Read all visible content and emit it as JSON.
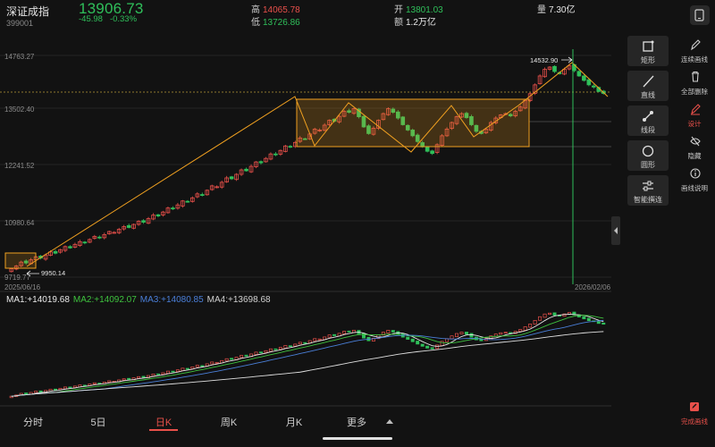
{
  "header": {
    "name": "深证成指",
    "code": "399001",
    "price": "13906.73",
    "change": "-45.98",
    "change_pct": "-0.33%",
    "high_label": "高",
    "high": "14065.78",
    "low_label": "低",
    "low": "13726.86",
    "open_label": "开",
    "open": "13801.03",
    "amount_label": "额",
    "amount": "1.2万亿",
    "volume_label": "量",
    "volume": "7.30亿"
  },
  "axis": {
    "y_ticks": [
      "14763.27",
      "13502.40",
      "12241.52",
      "10980.64",
      "9719.77"
    ],
    "start_date": "2025/06/16",
    "end_date": "2026/02/06",
    "low_mark": "9950.14",
    "high_mark": "14532.90"
  },
  "ma": {
    "ma1": "MA1:+14019.68",
    "ma2": "MA2:+14092.07",
    "ma3": "MA3:+14080.85",
    "ma4": "MA4:+13698.68"
  },
  "tools": [
    {
      "name": "rect",
      "label": "矩形"
    },
    {
      "name": "line",
      "label": "直线"
    },
    {
      "name": "segment",
      "label": "线段"
    },
    {
      "name": "circle",
      "label": "圆形"
    },
    {
      "name": "smart",
      "label": "智能撰连"
    }
  ],
  "side": [
    {
      "label": "连续画线"
    },
    {
      "label": "全部删除"
    },
    {
      "label": "设计"
    },
    {
      "label": "隐藏"
    },
    {
      "label": "画线说明"
    }
  ],
  "finish_label": "完成画线",
  "tabs": [
    "分时",
    "5日",
    "日K",
    "周K",
    "月K",
    "更多"
  ],
  "colors": {
    "up": "#e8504a",
    "down": "#2fbf5a",
    "accent": "#f0a020",
    "ma1": "#e8e8e8",
    "ma2": "#3ec23e",
    "ma3": "#4a7fd8",
    "ma4": "#e0e0e0"
  },
  "chart_data": {
    "type": "candlestick",
    "ylim": [
      9719.77,
      14763.27
    ],
    "x_start": "2025/06/16",
    "x_end": "2026/02/06",
    "closes": [
      9950,
      10010,
      10100,
      10080,
      10150,
      10220,
      10190,
      10260,
      10330,
      10300,
      10380,
      10450,
      10420,
      10500,
      10560,
      10540,
      10610,
      10680,
      10650,
      10720,
      10790,
      10770,
      10840,
      10900,
      10880,
      10950,
      11020,
      11000,
      11080,
      11160,
      11140,
      11230,
      11320,
      11300,
      11390,
      11480,
      11460,
      11550,
      11640,
      11620,
      11720,
      11820,
      11800,
      11900,
      12000,
      11980,
      12080,
      12180,
      12160,
      12260,
      12360,
      12340,
      12440,
      12540,
      12520,
      12620,
      12720,
      12700,
      12800,
      12900,
      12880,
      12990,
      13100,
      13080,
      13190,
      13300,
      13280,
      13390,
      13500,
      13480,
      13560,
      13380,
      13150,
      13000,
      13120,
      13300,
      13450,
      13560,
      13480,
      13350,
      13200,
      13080,
      12950,
      12820,
      12700,
      12600,
      12550,
      12750,
      12950,
      13100,
      13250,
      13380,
      13450,
      13360,
      13200,
      13050,
      13000,
      13100,
      13250,
      13350,
      13420,
      13450,
      13400,
      13500,
      13600,
      13750,
      13900,
      14100,
      14300,
      14450,
      14500,
      14400,
      14350,
      14450,
      14532,
      14420,
      14300,
      14200,
      14100,
      14050,
      13950,
      13906
    ],
    "volume_ma1_end": 14019.68
  }
}
